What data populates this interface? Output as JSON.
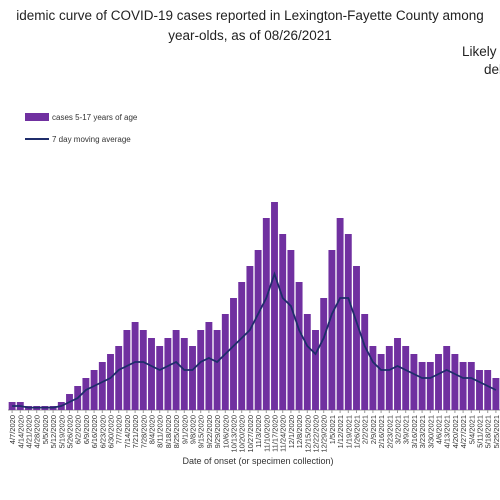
{
  "chart_data": {
    "type": "bar",
    "title": "idemic curve of COVID-19 cases reported in Lexington-Fayette County among",
    "subtitle": "year-olds, as of 08/26/2021",
    "annotations": [
      "Likely t",
      "del"
    ],
    "xlabel": "Date of onset (or specimen collection)",
    "categories": [
      "4/7/2020",
      "4/14/2020",
      "4/21/2020",
      "4/28/2020",
      "5/5/2020",
      "5/12/2020",
      "5/19/2020",
      "5/26/2020",
      "6/2/2020",
      "6/9/2020",
      "6/16/2020",
      "6/23/2020",
      "6/30/2020",
      "7/7/2020",
      "7/14/2020",
      "7/21/2020",
      "7/28/2020",
      "8/4/2020",
      "8/11/2020",
      "8/18/2020",
      "8/25/2020",
      "9/1/2020",
      "9/8/2020",
      "9/15/2020",
      "9/22/2020",
      "9/29/2020",
      "10/6/2020",
      "10/13/2020",
      "10/20/2020",
      "10/27/2020",
      "11/3/2020",
      "11/10/2020",
      "11/17/2020",
      "11/24/2020",
      "12/1/2020",
      "12/8/2020",
      "12/15/2020",
      "12/22/2020",
      "12/29/2020",
      "1/5/2021",
      "1/12/2021",
      "1/19/2021",
      "1/26/2021",
      "2/2/2021",
      "2/9/2021",
      "2/16/2021",
      "2/23/2021",
      "3/2/2021",
      "3/9/2021",
      "3/16/2021",
      "3/23/2021",
      "3/30/2021",
      "4/6/2021",
      "4/13/2021",
      "4/20/2021",
      "4/27/2021",
      "5/4/2021",
      "5/11/2021",
      "5/18/2021",
      "5/25/2021"
    ],
    "series": [
      {
        "name": "cases 5-17 years of age",
        "color": "#7030a0",
        "values": [
          1,
          1,
          0.5,
          0.5,
          0.5,
          0.5,
          1,
          2,
          3,
          4,
          5,
          6,
          7,
          8,
          10,
          11,
          10,
          9,
          8,
          9,
          10,
          9,
          8,
          10,
          11,
          10,
          12,
          14,
          16,
          18,
          20,
          24,
          26,
          22,
          20,
          16,
          12,
          10,
          14,
          20,
          24,
          22,
          18,
          12,
          8,
          7,
          8,
          9,
          8,
          7,
          6,
          6,
          7,
          8,
          7,
          6,
          6,
          5,
          5,
          4
        ]
      },
      {
        "name": "7 day moving average",
        "type": "line",
        "color": "#1f2d6b",
        "values": [
          0.5,
          0.5,
          0.3,
          0.3,
          0.3,
          0.3,
          0.5,
          1,
          1.5,
          2.5,
          3,
          3.5,
          4,
          5,
          5.5,
          6,
          6,
          5.5,
          5,
          5.5,
          6,
          5,
          5,
          6,
          6.5,
          6,
          7,
          8,
          9,
          10,
          12,
          14,
          17,
          14,
          13,
          10,
          8,
          7,
          9,
          12,
          14,
          14,
          11,
          8,
          6,
          5,
          5,
          5.5,
          5,
          4.5,
          4,
          4,
          4.5,
          5,
          4.5,
          4,
          4,
          3.5,
          3,
          2.5
        ]
      }
    ],
    "ylim": [
      0,
      30
    ]
  }
}
